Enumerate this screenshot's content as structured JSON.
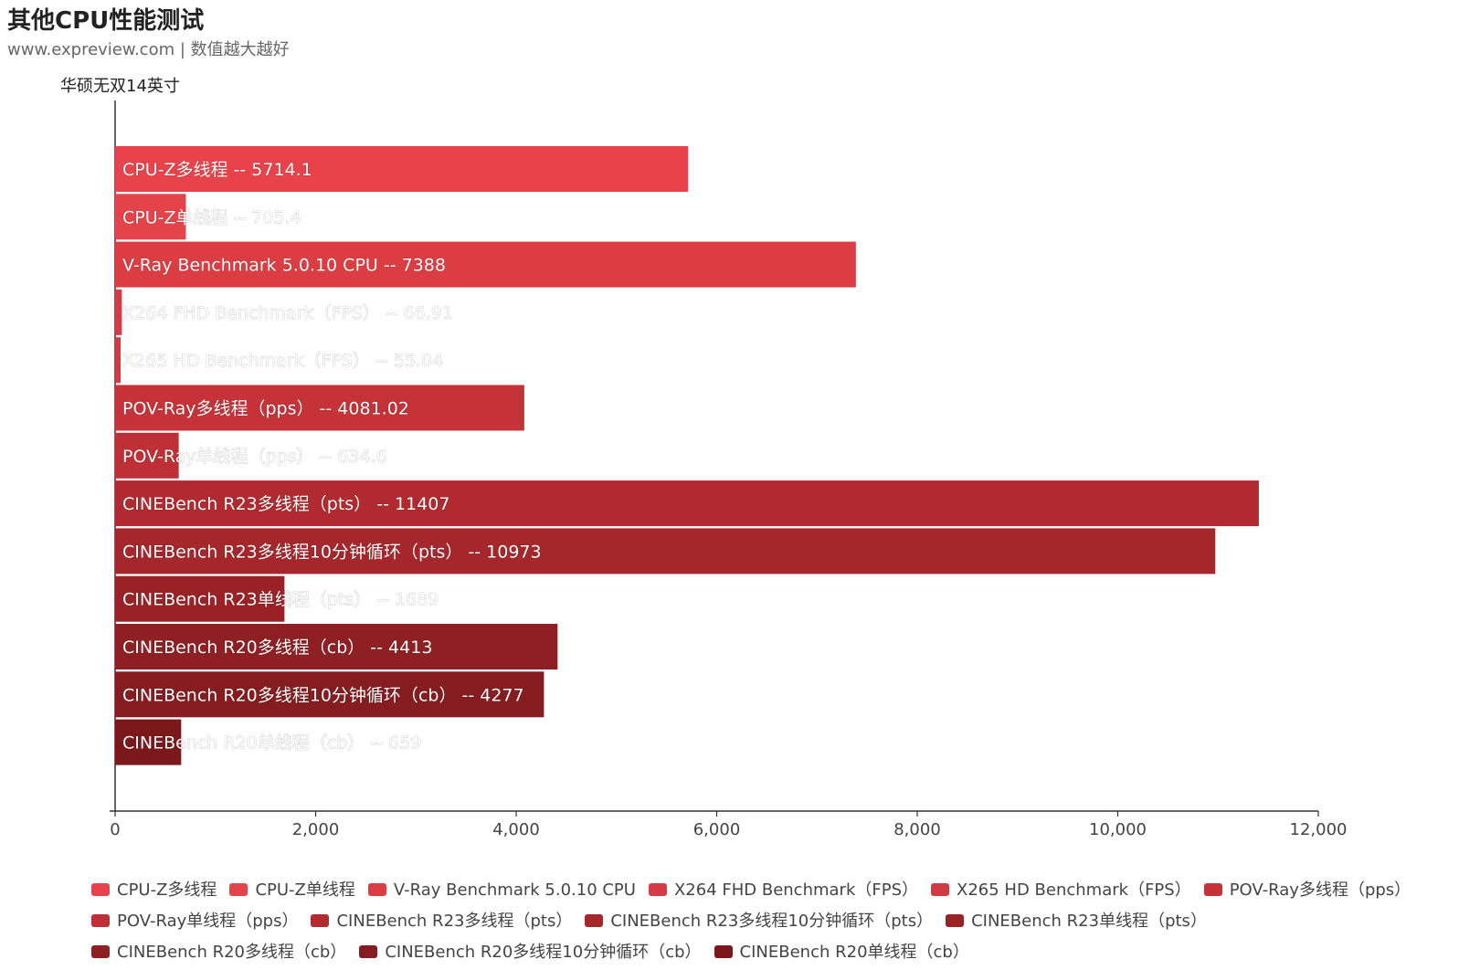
{
  "header": {
    "title": "其他CPU性能测试",
    "subtitle": "www.expreview.com | 数值越大越好"
  },
  "chart_data": {
    "type": "bar",
    "orientation": "horizontal",
    "series_name": "华硕无双14英寸",
    "xlim": [
      0,
      12000
    ],
    "x_ticks": [
      0,
      2000,
      4000,
      6000,
      8000,
      10000,
      12000
    ],
    "x_tick_labels": [
      "0",
      "2,000",
      "4,000",
      "6,000",
      "8,000",
      "10,000",
      "12,000"
    ],
    "separator": "--",
    "categories": [
      "CPU-Z多线程",
      "CPU-Z单线程",
      "V-Ray Benchmark 5.0.10 CPU",
      "X264 FHD Benchmark（FPS）",
      "X265 HD Benchmark（FPS）",
      "POV-Ray多线程（pps）",
      "POV-Ray单线程（pps）",
      "CINEBench R23多线程（pts）",
      "CINEBench R23多线程10分钟循环（pts）",
      "CINEBench R23单线程（pts）",
      "CINEBench R20多线程（cb）",
      "CINEBench R20多线程10分钟循环（cb）",
      "CINEBench R20单线程（cb）"
    ],
    "value_labels": [
      "5714.1",
      "705.4",
      "7388",
      "66.91",
      "55.04",
      "4081.02",
      "634.6",
      "11407",
      "10973",
      "1689",
      "4413",
      "4277",
      "659"
    ],
    "values": [
      5714.1,
      705.4,
      7388,
      66.91,
      55.04,
      4081.02,
      634.6,
      11407,
      10973,
      1689,
      4413,
      4277,
      659
    ],
    "colors": [
      "#e8434a",
      "#e5434a",
      "#dc3d43",
      "#d53b42",
      "#d13a40",
      "#c53238",
      "#bf3036",
      "#b02a30",
      "#a5262b",
      "#9a2227",
      "#8e1f23",
      "#851c20",
      "#7a181c"
    ],
    "legend": [
      "CPU-Z多线程",
      "CPU-Z单线程",
      "V-Ray Benchmark 5.0.10 CPU",
      "X264 FHD Benchmark（FPS）",
      "X265 HD Benchmark（FPS）",
      "POV-Ray多线程（pps）",
      "POV-Ray单线程（pps）",
      "CINEBench R23多线程（pts）",
      "CINEBench R23多线程10分钟循环（pts）",
      "CINEBench R23单线程（pts）",
      "CINEBench R20多线程（cb）",
      "CINEBench R20多线程10分钟循环（cb）",
      "CINEBench R20单线程（cb）"
    ]
  }
}
